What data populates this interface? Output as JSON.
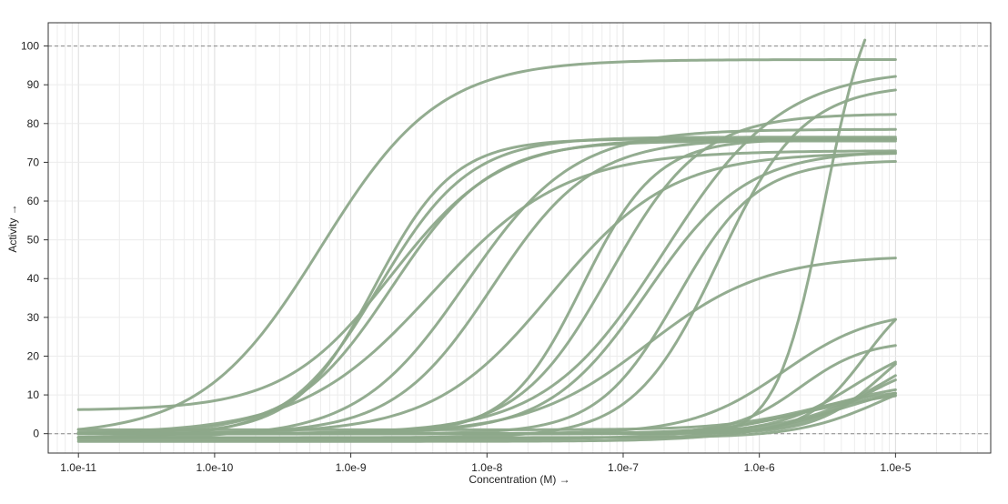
{
  "chart_data": {
    "type": "line",
    "title": "",
    "xlabel": "Concentration (M) →",
    "ylabel": "Activity →",
    "x_scale": "log",
    "xlim": [
      6e-12,
      5e-05
    ],
    "ylim": [
      -5,
      106
    ],
    "x_ticks": [
      1e-11,
      1e-10,
      1e-09,
      1e-08,
      1e-07,
      1e-06,
      1e-05
    ],
    "x_tick_labels": [
      "1.0e-11",
      "1.0e-10",
      "1.0e-9",
      "1.0e-8",
      "1.0e-7",
      "1.0e-6",
      "1.0e-5"
    ],
    "y_ticks": [
      0,
      10,
      20,
      30,
      40,
      50,
      60,
      70,
      80,
      90,
      100
    ],
    "y_tick_labels": [
      "0",
      "10",
      "20",
      "30",
      "40",
      "50",
      "60",
      "70",
      "80",
      "90",
      "100"
    ],
    "reference_lines_y": [
      0,
      100
    ],
    "grid": true,
    "legend": "none",
    "line_color": "#8da88a",
    "x_range": [
      1e-11,
      1e-05
    ],
    "series_model": "4-parameter logistic (Hill) dose-response curves; values estimated from the figure",
    "series": [
      {
        "bottom": -0.5,
        "top": 96.5,
        "ec50": 6e-10,
        "hill": 1.0
      },
      {
        "bottom": 6.0,
        "top": 76.0,
        "ec50": 2e-09,
        "hill": 1.1
      },
      {
        "bottom": 0.0,
        "top": 76.0,
        "ec50": 1.5e-09,
        "hill": 1.5
      },
      {
        "bottom": -1.0,
        "top": 76.5,
        "ec50": 1.6e-09,
        "hill": 1.3
      },
      {
        "bottom": 0.0,
        "top": 75.5,
        "ec50": 2e-09,
        "hill": 1.2
      },
      {
        "bottom": 0.0,
        "top": 73.0,
        "ec50": 4e-09,
        "hill": 0.9
      },
      {
        "bottom": -1.0,
        "top": 78.5,
        "ec50": 7e-09,
        "hill": 1.1
      },
      {
        "bottom": 0.0,
        "top": 76.0,
        "ec50": 1.1e-08,
        "hill": 1.2
      },
      {
        "bottom": 0.0,
        "top": 72.5,
        "ec50": 3e-08,
        "hill": 1.0
      },
      {
        "bottom": 0.0,
        "top": 76.0,
        "ec50": 5e-08,
        "hill": 1.6
      },
      {
        "bottom": 0.0,
        "top": 82.5,
        "ec50": 8e-08,
        "hill": 1.3
      },
      {
        "bottom": 0.0,
        "top": 73.0,
        "ec50": 1.5e-07,
        "hill": 1.2
      },
      {
        "bottom": 0.0,
        "top": 94.0,
        "ec50": 2e-07,
        "hill": 1.0
      },
      {
        "bottom": 0.0,
        "top": 70.5,
        "ec50": 2.5e-07,
        "hill": 1.5
      },
      {
        "bottom": 0.0,
        "top": 46.0,
        "ec50": 1.5e-07,
        "hill": 1.0
      },
      {
        "bottom": -1.0,
        "top": 90.0,
        "ec50": 5e-07,
        "hill": 1.4
      },
      {
        "bottom": -1.0,
        "top": 120.0,
        "ec50": 3e-06,
        "hill": 2.5
      },
      {
        "bottom": 0.0,
        "top": 32.0,
        "ec50": 1.5e-06,
        "hill": 1.3
      },
      {
        "bottom": 0.0,
        "top": 24.0,
        "ec50": 2e-06,
        "hill": 1.8
      },
      {
        "bottom": 0.0,
        "top": 40.0,
        "ec50": 6e-06,
        "hill": 2.0
      },
      {
        "bottom": 0.0,
        "top": 30.0,
        "ec50": 8e-06,
        "hill": 1.8
      },
      {
        "bottom": 0.0,
        "top": 25.0,
        "ec50": 5e-06,
        "hill": 1.5
      },
      {
        "bottom": 0.0,
        "top": 20.0,
        "ec50": 6e-06,
        "hill": 1.6
      },
      {
        "bottom": 0.0,
        "top": 30.0,
        "ec50": 1e-05,
        "hill": 1.2
      },
      {
        "bottom": -1.5,
        "top": 12.0,
        "ec50": 2e-06,
        "hill": 1.0
      },
      {
        "bottom": -1.0,
        "top": 18.0,
        "ec50": 8e-06,
        "hill": 1.4
      },
      {
        "bottom": 0.0,
        "top": 14.0,
        "ec50": 3e-06,
        "hill": 1.2
      },
      {
        "bottom": -2.0,
        "top": 15.0,
        "ec50": 4e-06,
        "hill": 1.1
      },
      {
        "bottom": 1.0,
        "top": 12.0,
        "ec50": 2.5e-06,
        "hill": 1.3
      }
    ]
  }
}
